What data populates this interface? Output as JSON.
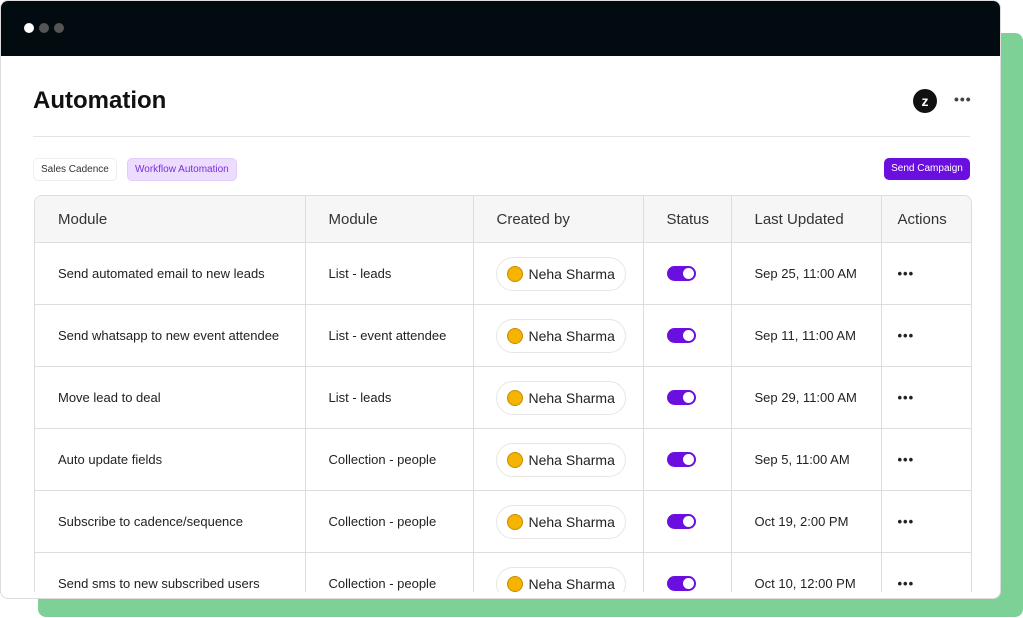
{
  "header": {
    "title": "Automation"
  },
  "tabs": [
    "Sales Cadence",
    "Workflow Automation"
  ],
  "button": "Send Campaign",
  "table": {
    "headers": [
      "Module",
      "Module",
      "Created by",
      "Status",
      "Last Updated",
      "Actions"
    ],
    "rows": [
      [
        "Send automated email to new leads",
        "List - leads",
        "Neha Sharma",
        "Sep 25, 11:00 AM"
      ],
      [
        "Send whatsapp to new event attendee",
        "List - event attendee",
        "Neha Sharma",
        "Sep 11, 11:00 AM"
      ],
      [
        "Move lead to deal",
        "List - leads",
        "Neha Sharma",
        "Sep 29, 11:00 AM"
      ],
      [
        "Auto update fields",
        "Collection - people",
        "Neha Sharma",
        "Sep 5, 11:00 AM"
      ],
      [
        "Subscribe to cadence/sequence",
        "Collection - people",
        "Neha Sharma",
        "Oct 19, 2:00 PM"
      ],
      [
        "Send sms to new subscribed users",
        "Collection - people",
        "Neha Sharma",
        "Oct 10, 12:00 PM"
      ]
    ]
  }
}
